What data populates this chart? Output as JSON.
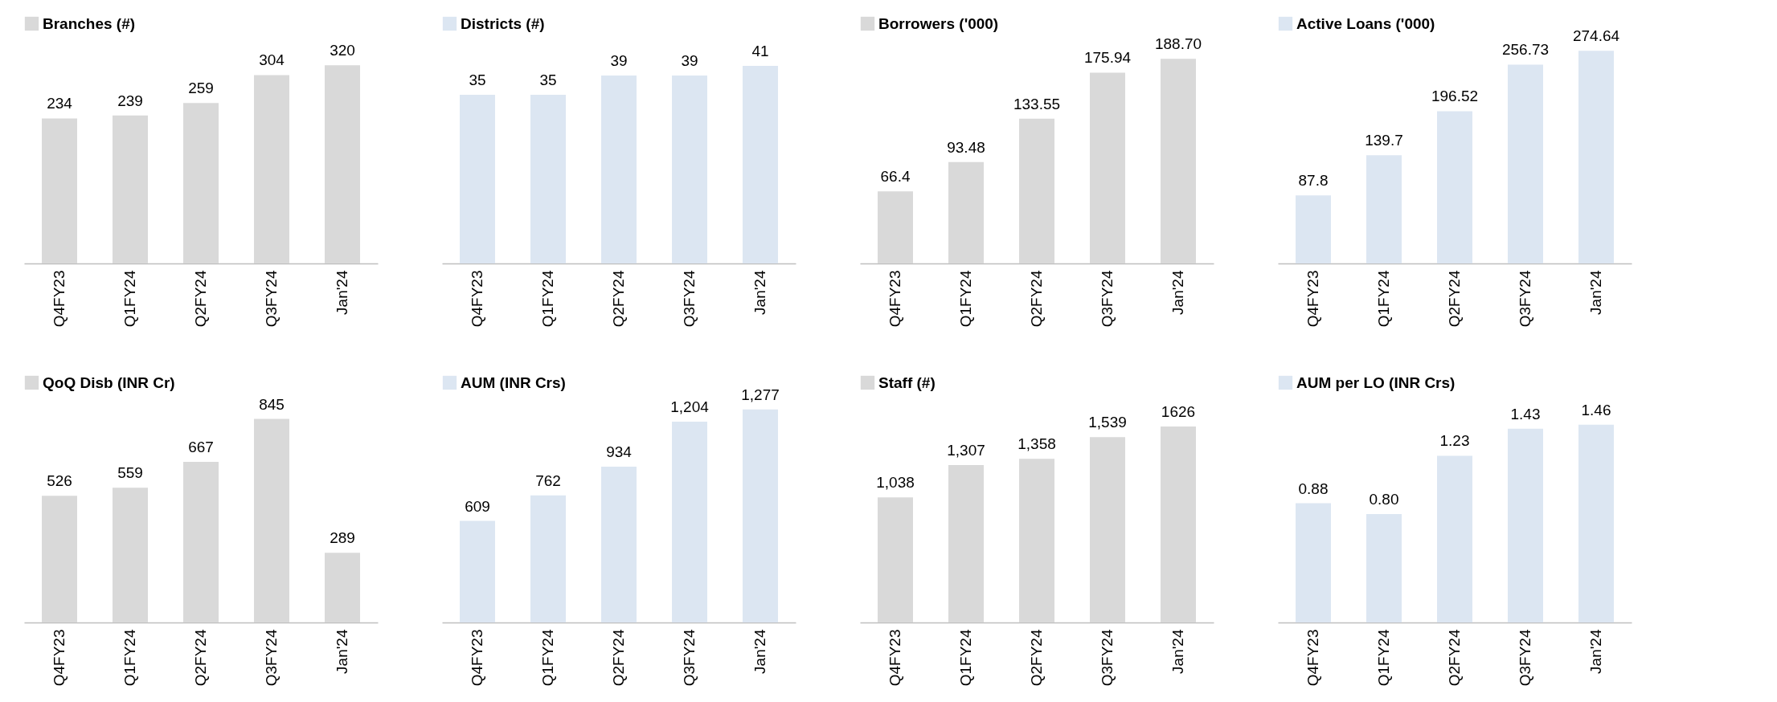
{
  "chart_data": [
    {
      "type": "bar",
      "categories": [
        "Q4FY23",
        "Q1FY24",
        "Q2FY24",
        "Q3FY24",
        "Jan'24"
      ],
      "legend": "top",
      "series": [
        {
          "name": "Branches (#)",
          "color": "#d9d9d9",
          "values": [
            234,
            239,
            259,
            304,
            320
          ],
          "value_labels": [
            "234",
            "239",
            "259",
            "304",
            "320"
          ]
        }
      ]
    },
    {
      "type": "bar",
      "categories": [
        "Q4FY23",
        "Q1FY24",
        "Q2FY24",
        "Q3FY24",
        "Jan'24"
      ],
      "legend": "top",
      "series": [
        {
          "name": "Districts (#)",
          "color": "#dce6f2",
          "values": [
            35,
            35,
            39,
            39,
            41
          ],
          "value_labels": [
            "35",
            "35",
            "39",
            "39",
            "41"
          ]
        }
      ]
    },
    {
      "type": "bar",
      "categories": [
        "Q4FY23",
        "Q1FY24",
        "Q2FY24",
        "Q3FY24",
        "Jan'24"
      ],
      "legend": "top",
      "series": [
        {
          "name": "Borrowers ('000)",
          "color": "#d9d9d9",
          "values": [
            66.4,
            93.48,
            133.55,
            175.94,
            188.7
          ],
          "value_labels": [
            "66.4",
            "93.48",
            "133.55",
            "175.94",
            "188.70"
          ]
        }
      ]
    },
    {
      "type": "bar",
      "categories": [
        "Q4FY23",
        "Q1FY24",
        "Q2FY24",
        "Q3FY24",
        "Jan'24"
      ],
      "legend": "top",
      "series": [
        {
          "name": "Active Loans ('000)",
          "color": "#dce6f2",
          "values": [
            87.8,
            139.7,
            196.52,
            256.73,
            274.64
          ],
          "value_labels": [
            "87.8",
            "139.7",
            "196.52",
            "256.73",
            "274.64"
          ]
        }
      ]
    },
    {
      "type": "bar",
      "categories": [
        "Q4FY23",
        "Q1FY24",
        "Q2FY24",
        "Q3FY24",
        "Jan'24"
      ],
      "legend": "top",
      "series": [
        {
          "name": "QoQ Disb (INR Cr)",
          "color": "#d9d9d9",
          "values": [
            526,
            559,
            667,
            845,
            289
          ],
          "value_labels": [
            "526",
            "559",
            "667",
            "845",
            "289"
          ]
        }
      ]
    },
    {
      "type": "bar",
      "categories": [
        "Q4FY23",
        "Q1FY24",
        "Q2FY24",
        "Q3FY24",
        "Jan'24"
      ],
      "legend": "top",
      "series": [
        {
          "name": "AUM (INR Crs)",
          "color": "#dce6f2",
          "values": [
            609,
            762,
            934,
            1204,
            1277
          ],
          "value_labels": [
            "609",
            "762",
            "934",
            "1,204",
            "1,277"
          ]
        }
      ]
    },
    {
      "type": "bar",
      "categories": [
        "Q4FY23",
        "Q1FY24",
        "Q2FY24",
        "Q3FY24",
        "Jan'24"
      ],
      "legend": "top",
      "series": [
        {
          "name": "Staff (#)",
          "color": "#d9d9d9",
          "values": [
            1038,
            1307,
            1358,
            1539,
            1626
          ],
          "value_labels": [
            "1,038",
            "1,307",
            "1,358",
            "1,539",
            "1626"
          ]
        }
      ]
    },
    {
      "type": "bar",
      "categories": [
        "Q4FY23",
        "Q1FY24",
        "Q2FY24",
        "Q3FY24",
        "Jan'24"
      ],
      "legend": "top",
      "series": [
        {
          "name": "AUM per LO  (INR Crs)",
          "color": "#dce6f2",
          "values": [
            0.88,
            0.8,
            1.23,
            1.43,
            1.46
          ],
          "value_labels": [
            "0.88",
            "0.80",
            "1.23",
            "1.43",
            "1.46"
          ]
        }
      ]
    }
  ]
}
